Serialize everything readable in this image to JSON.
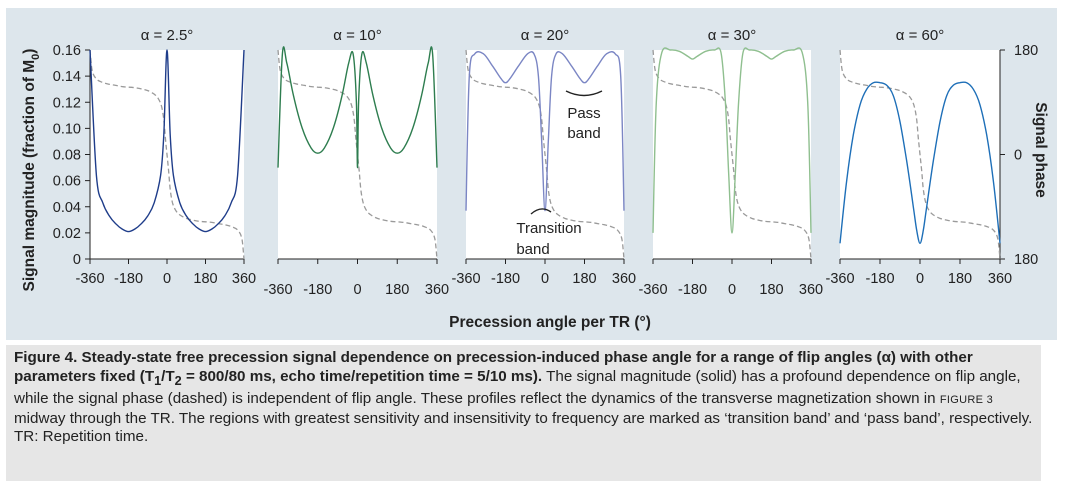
{
  "figure": {
    "y_axis_label": "Signal magnitude (fraction of M",
    "y_axis_label_sub": "0",
    "y_axis_label_end": ")",
    "right_axis_label": "Signal phase",
    "x_axis_label": "Precession angle per TR (°)",
    "annotation_pass_band_line1": "Pass",
    "annotation_pass_band_line2": "band",
    "annotation_transition_band_line1": "Transition",
    "annotation_transition_band_line2": "band"
  },
  "caption": {
    "bold_1": "Figure 4. Steady-state free precession signal dependence on precession-induced phase angle for a range of flip angles (α) with other parameters fixed (T",
    "bold_sub1": "1",
    "bold_2": "/T",
    "bold_sub2": "2",
    "bold_3": " = 800/80 ms, echo time/repetition time = 5/10 ms).",
    "text_1": " The signal magnitude (solid) has a profound dependence on flip angle, while the signal phase (dashed) is independent of flip angle. These profiles reflect the dynamics of the transverse magnetization shown in ",
    "figref": "Figure 3",
    "text_2": " midway through the TR. The regions with greatest sensitivity and insensitivity to frequency are marked as ‘transition band’ and ‘pass band’, respectively.",
    "abbrev": "TR: Repetition time."
  },
  "chart_data": [
    {
      "type": "line",
      "title": "α = 2.5°",
      "color": "#1f3d8a",
      "xlabel": "Precession angle per TR (°)",
      "ylabel": "Signal magnitude (fraction of M0)",
      "x_ticks": [
        -360,
        -180,
        0,
        180,
        360
      ],
      "y_ticks": [
        0,
        0.02,
        0.04,
        0.06,
        0.08,
        0.1,
        0.12,
        0.14,
        0.16
      ],
      "ylim": [
        0,
        0.16
      ],
      "xlim": [
        -360,
        360
      ],
      "series": [
        {
          "style": "solid",
          "x": [
            -360,
            -330,
            -300,
            -270,
            -240,
            -210,
            -180,
            -150,
            -120,
            -90,
            -60,
            -30,
            -15,
            0,
            15,
            30,
            60,
            90,
            120,
            150,
            180,
            210,
            240,
            270,
            300,
            330,
            360
          ],
          "values": [
            0.16,
            0.064,
            0.043,
            0.033,
            0.027,
            0.023,
            0.021,
            0.023,
            0.027,
            0.033,
            0.043,
            0.064,
            0.095,
            0.16,
            0.095,
            0.064,
            0.043,
            0.033,
            0.027,
            0.023,
            0.021,
            0.023,
            0.027,
            0.033,
            0.043,
            0.064,
            0.16
          ]
        }
      ]
    },
    {
      "type": "line",
      "title": "α = 10°",
      "color": "#2e7d4f",
      "x_ticks": [
        -360,
        -180,
        0,
        180,
        360
      ],
      "xlim": [
        -360,
        360
      ],
      "ylim": [
        0,
        0.16
      ],
      "series": [
        {
          "style": "solid",
          "x": [
            -360,
            -340,
            -320,
            -290,
            -250,
            -210,
            -180,
            -150,
            -110,
            -70,
            -40,
            -20,
            -5,
            0,
            5,
            20,
            40,
            70,
            110,
            150,
            180,
            210,
            250,
            290,
            320,
            340,
            360
          ],
          "values": [
            0.07,
            0.157,
            0.15,
            0.125,
            0.1,
            0.085,
            0.081,
            0.085,
            0.1,
            0.125,
            0.15,
            0.157,
            0.12,
            0.07,
            0.12,
            0.157,
            0.15,
            0.125,
            0.1,
            0.085,
            0.081,
            0.085,
            0.1,
            0.125,
            0.15,
            0.157,
            0.07
          ]
        }
      ]
    },
    {
      "type": "line",
      "title": "α = 20°",
      "color": "#7b86c4",
      "x_ticks": [
        -360,
        -180,
        0,
        180,
        360
      ],
      "xlim": [
        -360,
        360
      ],
      "ylim": [
        0,
        0.16
      ],
      "series": [
        {
          "style": "solid",
          "x": [
            -360,
            -345,
            -320,
            -280,
            -240,
            -200,
            -180,
            -160,
            -120,
            -80,
            -50,
            -30,
            -15,
            0,
            15,
            30,
            50,
            80,
            120,
            160,
            180,
            200,
            240,
            280,
            320,
            345,
            360
          ],
          "values": [
            0.037,
            0.14,
            0.157,
            0.157,
            0.148,
            0.138,
            0.135,
            0.138,
            0.148,
            0.157,
            0.157,
            0.14,
            0.09,
            0.037,
            0.09,
            0.14,
            0.157,
            0.157,
            0.148,
            0.138,
            0.135,
            0.138,
            0.148,
            0.157,
            0.157,
            0.14,
            0.037
          ]
        }
      ]
    },
    {
      "type": "line",
      "title": "α = 30°",
      "color": "#8fbf8f",
      "x_ticks": [
        -360,
        -180,
        0,
        180,
        360
      ],
      "xlim": [
        -360,
        360
      ],
      "ylim": [
        0,
        0.16
      ],
      "series": [
        {
          "style": "solid",
          "x": [
            -360,
            -345,
            -320,
            -280,
            -240,
            -200,
            -180,
            -160,
            -120,
            -80,
            -50,
            -30,
            -15,
            0,
            15,
            30,
            50,
            80,
            120,
            160,
            180,
            200,
            240,
            280,
            320,
            345,
            360
          ],
          "values": [
            0.02,
            0.12,
            0.158,
            0.16,
            0.159,
            0.155,
            0.153,
            0.155,
            0.159,
            0.16,
            0.158,
            0.12,
            0.065,
            0.02,
            0.065,
            0.12,
            0.158,
            0.16,
            0.159,
            0.155,
            0.153,
            0.155,
            0.159,
            0.16,
            0.158,
            0.12,
            0.02
          ]
        }
      ]
    },
    {
      "type": "line",
      "title": "α = 60°",
      "color": "#1e6fb8",
      "x_ticks": [
        -360,
        -180,
        0,
        180,
        360
      ],
      "xlim": [
        -360,
        360
      ],
      "ylim": [
        0,
        0.16
      ],
      "y2label": "Signal phase",
      "y2_ticks": [
        "180",
        "0",
        "180"
      ],
      "series": [
        {
          "style": "solid",
          "x": [
            -360,
            -330,
            -300,
            -270,
            -240,
            -210,
            -180,
            -150,
            -120,
            -90,
            -60,
            -30,
            -15,
            0,
            15,
            30,
            60,
            90,
            120,
            150,
            180,
            210,
            240,
            270,
            300,
            330,
            360
          ],
          "values": [
            0.012,
            0.06,
            0.095,
            0.118,
            0.13,
            0.135,
            0.135,
            0.133,
            0.125,
            0.105,
            0.075,
            0.04,
            0.022,
            0.012,
            0.022,
            0.04,
            0.075,
            0.105,
            0.125,
            0.133,
            0.135,
            0.135,
            0.13,
            0.118,
            0.095,
            0.06,
            0.012
          ]
        }
      ]
    }
  ],
  "phase_curve": {
    "style": "dashed",
    "color": "#9a9a9a",
    "x": [
      -360,
      -350,
      -330,
      -300,
      -270,
      -240,
      -210,
      -180,
      -150,
      -120,
      -90,
      -60,
      -40,
      -25,
      -15,
      -8,
      0,
      8,
      15,
      25,
      40,
      60,
      90,
      120,
      150,
      180,
      210,
      240,
      270,
      300,
      330,
      350,
      360
    ],
    "phase": [
      180,
      145,
      130,
      124,
      121,
      119,
      117,
      116,
      115,
      113,
      110,
      104,
      96,
      82,
      60,
      30,
      0,
      -30,
      -60,
      -82,
      -96,
      -104,
      -110,
      -113,
      -115,
      -116,
      -117,
      -119,
      -121,
      -124,
      -130,
      -145,
      -180
    ]
  }
}
